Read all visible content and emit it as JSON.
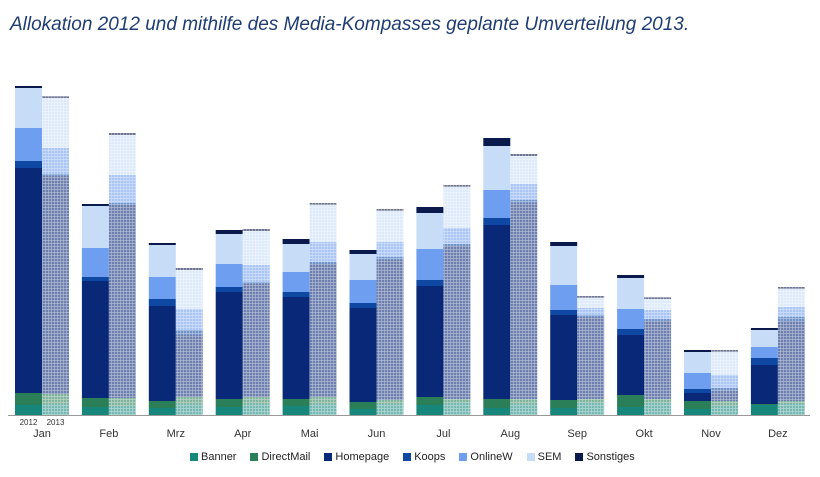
{
  "chart_data": {
    "type": "bar",
    "stacked": true,
    "title": "Allokation 2012 und mithilfe des Media-Kompasses geplante Umverteilung 2013.",
    "xlabel": "",
    "ylabel": "",
    "ylim": [
      0,
      340
    ],
    "grid": false,
    "legend_position": "bottom",
    "categories": [
      "Jan",
      "Feb",
      "Mrz",
      "Apr",
      "Mai",
      "Jun",
      "Jul",
      "Aug",
      "Sep",
      "Okt",
      "Nov",
      "Dez"
    ],
    "years": [
      "2012",
      "2013"
    ],
    "series": [
      {
        "name": "Banner",
        "color": "#17877c",
        "values2012": [
          10,
          8,
          7,
          8,
          9,
          6,
          10,
          7,
          7,
          8,
          6,
          10
        ],
        "values2013": [
          11,
          9,
          11,
          11,
          11,
          11,
          12,
          11,
          12,
          12,
          9,
          11
        ]
      },
      {
        "name": "DirectMail",
        "color": "#2a7f58",
        "values2012": [
          12,
          9,
          7,
          8,
          7,
          7,
          8,
          9,
          8,
          12,
          8,
          1
        ],
        "values2013": [
          10,
          8,
          7,
          7,
          7,
          4,
          4,
          5,
          4,
          4,
          5,
          3
        ]
      },
      {
        "name": "Homepage",
        "color": "#0a2878",
        "values2012": [
          225,
          117,
          95,
          107,
          102,
          94,
          111,
          174,
          85,
          60,
          8,
          39
        ],
        "values2013": [
          218,
          193,
          62,
          113,
          133,
          140,
          153,
          196,
          82,
          78,
          10,
          80
        ]
      },
      {
        "name": "Koops",
        "color": "#0e48a3",
        "values2012": [
          7,
          4,
          7,
          5,
          5,
          5,
          6,
          7,
          5,
          6,
          4,
          7
        ],
        "values2013": [
          2,
          2,
          5,
          2,
          2,
          3,
          2,
          3,
          2,
          2,
          3,
          4
        ]
      },
      {
        "name": "OnlineW",
        "color": "#6e9ef0",
        "values2012": [
          33,
          29,
          22,
          23,
          20,
          23,
          31,
          28,
          25,
          20,
          16,
          11
        ],
        "values2013": [
          26,
          28,
          21,
          17,
          20,
          15,
          16,
          16,
          7,
          9,
          13,
          10
        ]
      },
      {
        "name": "SEM",
        "color": "#c6dcf7",
        "values2012": [
          40,
          42,
          32,
          30,
          28,
          26,
          36,
          44,
          39,
          31,
          21,
          17
        ],
        "values2013": [
          50,
          40,
          39,
          34,
          37,
          31,
          41,
          28,
          10,
          11,
          23,
          18
        ]
      },
      {
        "name": "Sonstiges",
        "color": "#0b1a4c",
        "values2012": [
          2,
          2,
          2,
          4,
          5,
          4,
          6,
          8,
          4,
          3,
          2,
          2
        ],
        "values2013": [
          2,
          2,
          2,
          2,
          2,
          2,
          2,
          2,
          2,
          2,
          2,
          2
        ]
      }
    ]
  }
}
